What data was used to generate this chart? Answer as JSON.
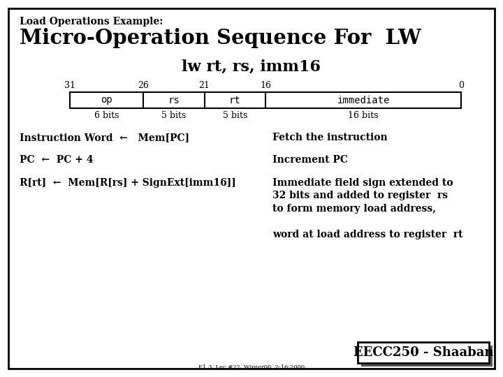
{
  "title_small": "Load Operations Example:",
  "title_large": "Micro-Operation Sequence For  LW",
  "subtitle": "lw rt, rs, imm16",
  "bg_color": "#ffffff",
  "border_color": "#000000",
  "bit_labels": [
    "31",
    "26",
    "21",
    "16",
    "0"
  ],
  "fields": [
    "op",
    "rs",
    "rt",
    "immediate"
  ],
  "field_bits": [
    "6 bits",
    "5 bits",
    "5 bits",
    "16 bits"
  ],
  "ops_left": [
    "Instruction Word  ←   Mem[PC]",
    "PC  ←  PC + 4",
    "R[rt]  ←  Mem[R[rs] + SignExt[imm16]]"
  ],
  "ops_right": [
    "Fetch the instruction",
    "Increment PC",
    "Immediate field sign extended to\n32 bits and added to register  rs\nto form memory load address,\n\nword at load address to register  rt"
  ],
  "footer": "EECC250 - Shaaban",
  "footer_small": "F1.3  Lec #22  Winter00  2-16-2000"
}
